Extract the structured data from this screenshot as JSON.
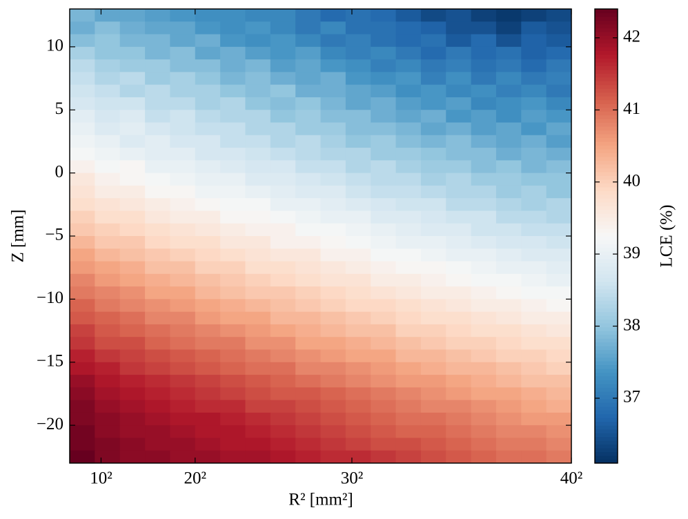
{
  "chart_data": {
    "type": "heatmap",
    "xlabel": "R² [mm²]",
    "ylabel": "Z [mm]",
    "colorbar_label": "LCE (%)",
    "colormap": "RdBu_r",
    "xlim": [
      0,
      1600
    ],
    "xticks": [
      {
        "value": 100,
        "label": "10²"
      },
      {
        "value": 400,
        "label": "20²"
      },
      {
        "value": 900,
        "label": "30²"
      },
      {
        "value": 1600,
        "label": "40²"
      }
    ],
    "ylim": [
      -23,
      13
    ],
    "yticks": [
      {
        "value": -20,
        "label": "−20"
      },
      {
        "value": -15,
        "label": "−15"
      },
      {
        "value": -10,
        "label": "−10"
      },
      {
        "value": -5,
        "label": "−5"
      },
      0,
      5,
      10
    ],
    "clim": [
      36.1,
      42.4
    ],
    "cticks": [
      37,
      38,
      39,
      40,
      41,
      42
    ],
    "values": [
      [
        37.8,
        37.6,
        37.6,
        37.5,
        37.4,
        37.3,
        37.3,
        37.2,
        37.2,
        37.0,
        36.8,
        36.9,
        36.8,
        36.6,
        36.4,
        36.5,
        36.3,
        36.2,
        36.3,
        36.4
      ],
      [
        37.7,
        37.9,
        37.7,
        37.6,
        37.6,
        37.4,
        37.3,
        37.4,
        37.2,
        37.0,
        37.2,
        36.9,
        36.9,
        36.8,
        36.7,
        36.5,
        36.5,
        36.3,
        36.6,
        36.5
      ],
      [
        37.9,
        38.0,
        37.8,
        37.8,
        37.6,
        37.7,
        37.4,
        37.3,
        37.4,
        37.2,
        37.0,
        37.1,
        36.9,
        36.8,
        36.9,
        36.6,
        36.8,
        36.5,
        36.7,
        36.6
      ],
      [
        38.2,
        38.0,
        38.0,
        37.8,
        37.9,
        37.6,
        37.7,
        37.5,
        37.4,
        37.5,
        37.2,
        37.1,
        37.2,
        37.0,
        36.8,
        37.0,
        36.8,
        36.9,
        36.7,
        36.8
      ],
      [
        38.4,
        38.2,
        38.1,
        38.1,
        37.9,
        37.9,
        37.7,
        37.8,
        37.5,
        37.6,
        37.4,
        37.3,
        37.1,
        37.2,
        37.0,
        37.1,
        36.9,
        37.0,
        36.8,
        37.0
      ],
      [
        38.5,
        38.3,
        38.4,
        38.1,
        38.2,
        38.0,
        37.8,
        37.9,
        37.7,
        37.6,
        37.7,
        37.4,
        37.3,
        37.4,
        37.1,
        37.3,
        37.0,
        37.2,
        37.0,
        37.1
      ],
      [
        38.6,
        38.5,
        38.3,
        38.4,
        38.2,
        38.2,
        38.0,
        37.9,
        38.0,
        37.7,
        37.7,
        37.6,
        37.5,
        37.3,
        37.4,
        37.2,
        37.3,
        37.1,
        37.2,
        37.0
      ],
      [
        38.7,
        38.6,
        38.6,
        38.4,
        38.4,
        38.2,
        38.3,
        38.0,
        37.9,
        38.0,
        37.8,
        37.6,
        37.7,
        37.5,
        37.4,
        37.5,
        37.2,
        37.3,
        37.4,
        37.2
      ],
      [
        38.9,
        38.7,
        38.8,
        38.5,
        38.6,
        38.4,
        38.3,
        38.3,
        38.0,
        38.1,
        37.9,
        37.9,
        37.7,
        37.6,
        37.7,
        37.4,
        37.5,
        37.3,
        37.5,
        37.4
      ],
      [
        39.0,
        38.8,
        38.9,
        38.7,
        38.6,
        38.5,
        38.5,
        38.3,
        38.3,
        38.1,
        38.1,
        37.9,
        37.9,
        37.8,
        37.6,
        37.7,
        37.5,
        37.6,
        37.4,
        37.6
      ],
      [
        39.1,
        39.0,
        38.8,
        38.9,
        38.7,
        38.7,
        38.5,
        38.5,
        38.3,
        38.4,
        38.2,
        38.0,
        38.1,
        37.9,
        37.8,
        37.9,
        37.7,
        37.6,
        37.7,
        37.5
      ],
      [
        39.2,
        39.1,
        39.0,
        38.9,
        38.9,
        38.7,
        38.7,
        38.6,
        38.5,
        38.4,
        38.3,
        38.3,
        38.1,
        38.1,
        38.0,
        37.9,
        37.9,
        37.7,
        37.8,
        37.7
      ],
      [
        39.4,
        39.2,
        39.3,
        39.0,
        39.0,
        38.9,
        38.8,
        38.7,
        38.7,
        38.5,
        38.5,
        38.3,
        38.4,
        38.2,
        38.1,
        38.1,
        37.9,
        38.0,
        37.8,
        37.9
      ],
      [
        39.6,
        39.4,
        39.3,
        39.2,
        39.1,
        39.0,
        39.0,
        38.8,
        38.8,
        38.7,
        38.6,
        38.5,
        38.4,
        38.4,
        38.2,
        38.3,
        38.1,
        38.1,
        38.0,
        38.0
      ],
      [
        39.7,
        39.5,
        39.5,
        39.3,
        39.3,
        39.1,
        39.1,
        39.0,
        38.9,
        38.8,
        38.8,
        38.6,
        38.5,
        38.5,
        38.4,
        38.3,
        38.3,
        38.1,
        38.2,
        38.0
      ],
      [
        39.8,
        39.7,
        39.6,
        39.5,
        39.4,
        39.3,
        39.2,
        39.2,
        39.0,
        39.0,
        38.9,
        38.8,
        38.7,
        38.6,
        38.6,
        38.4,
        38.4,
        38.3,
        38.2,
        38.3
      ],
      [
        40.0,
        39.8,
        39.8,
        39.6,
        39.5,
        39.5,
        39.3,
        39.3,
        39.2,
        39.1,
        39.0,
        39.0,
        38.8,
        38.8,
        38.7,
        38.6,
        38.6,
        38.4,
        38.4,
        38.3
      ],
      [
        40.1,
        40.0,
        39.9,
        39.8,
        39.7,
        39.6,
        39.5,
        39.4,
        39.4,
        39.2,
        39.2,
        39.1,
        39.0,
        38.9,
        38.8,
        38.8,
        38.6,
        38.6,
        38.5,
        38.5
      ],
      [
        40.3,
        40.1,
        40.1,
        39.9,
        39.8,
        39.8,
        39.6,
        39.6,
        39.4,
        39.4,
        39.3,
        39.2,
        39.1,
        39.0,
        39.0,
        38.9,
        38.8,
        38.7,
        38.7,
        38.6
      ],
      [
        40.5,
        40.3,
        40.2,
        40.1,
        40.0,
        39.9,
        39.8,
        39.7,
        39.6,
        39.6,
        39.4,
        39.4,
        39.2,
        39.2,
        39.1,
        39.0,
        39.0,
        38.9,
        38.8,
        38.8
      ],
      [
        40.6,
        40.5,
        40.4,
        40.2,
        40.2,
        40.0,
        40.0,
        39.8,
        39.8,
        39.7,
        39.6,
        39.5,
        39.4,
        39.3,
        39.3,
        39.2,
        39.1,
        39.0,
        39.0,
        38.9
      ],
      [
        40.8,
        40.6,
        40.5,
        40.4,
        40.3,
        40.2,
        40.1,
        40.0,
        39.9,
        39.8,
        39.7,
        39.7,
        39.5,
        39.5,
        39.4,
        39.3,
        39.2,
        39.2,
        39.1,
        39.0
      ],
      [
        40.9,
        40.8,
        40.7,
        40.5,
        40.5,
        40.3,
        40.2,
        40.1,
        40.1,
        40.0,
        39.9,
        39.8,
        39.7,
        39.6,
        39.5,
        39.5,
        39.4,
        39.3,
        39.2,
        39.2
      ],
      [
        41.1,
        40.9,
        40.8,
        40.7,
        40.6,
        40.5,
        40.4,
        40.3,
        40.2,
        40.1,
        40.0,
        39.9,
        39.9,
        39.8,
        39.7,
        39.6,
        39.5,
        39.5,
        39.4,
        39.3
      ],
      [
        41.2,
        41.1,
        41.0,
        40.8,
        40.8,
        40.6,
        40.5,
        40.5,
        40.3,
        40.3,
        40.2,
        40.1,
        40.0,
        39.9,
        39.8,
        39.8,
        39.7,
        39.6,
        39.5,
        39.5
      ],
      [
        41.4,
        41.2,
        41.1,
        41.0,
        40.9,
        40.8,
        40.7,
        40.6,
        40.5,
        40.4,
        40.3,
        40.2,
        40.2,
        40.0,
        40.0,
        39.9,
        39.8,
        39.8,
        39.7,
        39.6
      ],
      [
        41.5,
        41.3,
        41.3,
        41.1,
        41.0,
        40.9,
        40.9,
        40.7,
        40.7,
        40.5,
        40.5,
        40.4,
        40.3,
        40.2,
        40.1,
        40.0,
        40.0,
        39.9,
        39.8,
        39.8
      ],
      [
        41.7,
        41.5,
        41.4,
        41.3,
        41.2,
        41.1,
        41.0,
        40.9,
        40.8,
        40.7,
        40.6,
        40.5,
        40.5,
        40.3,
        40.3,
        40.2,
        40.1,
        40.0,
        40.0,
        39.9
      ],
      [
        41.8,
        41.7,
        41.5,
        41.4,
        41.3,
        41.2,
        41.1,
        41.0,
        41.0,
        40.8,
        40.8,
        40.7,
        40.6,
        40.5,
        40.4,
        40.3,
        40.3,
        40.2,
        40.1,
        40.0
      ],
      [
        42.0,
        41.8,
        41.7,
        41.6,
        41.5,
        41.4,
        41.3,
        41.2,
        41.1,
        41.0,
        40.9,
        40.8,
        40.7,
        40.6,
        40.6,
        40.5,
        40.4,
        40.3,
        40.2,
        40.2
      ],
      [
        42.1,
        41.9,
        41.8,
        41.7,
        41.6,
        41.5,
        41.4,
        41.3,
        41.2,
        41.2,
        41.1,
        41.0,
        40.9,
        40.8,
        40.7,
        40.6,
        40.5,
        40.5,
        40.4,
        40.3
      ],
      [
        42.2,
        42.0,
        41.9,
        41.8,
        41.7,
        41.6,
        41.6,
        41.4,
        41.4,
        41.3,
        41.2,
        41.1,
        41.0,
        40.9,
        40.8,
        40.8,
        40.7,
        40.6,
        40.5,
        40.4
      ],
      [
        42.2,
        42.1,
        42.0,
        41.9,
        41.8,
        41.8,
        41.7,
        41.6,
        41.5,
        41.4,
        41.3,
        41.2,
        41.1,
        41.0,
        41.0,
        40.9,
        40.8,
        40.7,
        40.6,
        40.6
      ],
      [
        42.3,
        42.1,
        42.0,
        42.0,
        41.9,
        41.8,
        41.8,
        41.7,
        41.6,
        41.5,
        41.4,
        41.3,
        41.2,
        41.1,
        41.1,
        41.0,
        40.9,
        40.8,
        40.8,
        40.7
      ],
      [
        42.3,
        42.2,
        42.1,
        42.0,
        42.0,
        41.9,
        41.8,
        41.8,
        41.7,
        41.6,
        41.5,
        41.4,
        41.3,
        41.3,
        41.2,
        41.1,
        41.0,
        40.9,
        40.9,
        40.8
      ],
      [
        42.4,
        42.2,
        42.1,
        42.1,
        42.0,
        42.0,
        41.9,
        41.9,
        41.8,
        41.7,
        41.6,
        41.6,
        41.5,
        41.4,
        41.3,
        41.2,
        41.1,
        41.0,
        41.0,
        40.9
      ]
    ]
  }
}
